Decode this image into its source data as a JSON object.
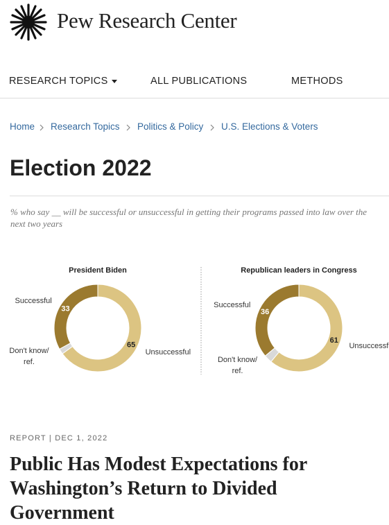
{
  "header": {
    "logo": "Pew Research Center"
  },
  "nav": [
    "RESEARCH TOPICS",
    "ALL PUBLICATIONS",
    "METHODS"
  ],
  "breadcrumb": [
    "Home",
    "Research Topics",
    "Politics & Policy",
    "U.S. Elections & Voters"
  ],
  "page_title": "Election 2022",
  "figure_caption": "% who say __ will be successful or unsuccessful in getting their programs passed into law over the next two years",
  "chart_data": [
    {
      "type": "donut",
      "title": "President Biden",
      "categories": [
        "Unsuccessful",
        "Don't know/ ref.",
        "Successful"
      ],
      "values": [
        65,
        2,
        33
      ],
      "colors": [
        "#dcc482",
        "#d9d9d9",
        "#9b7a2f"
      ]
    },
    {
      "type": "donut",
      "title": "Republican leaders in Congress",
      "categories": [
        "Unsuccessful",
        "Don't know/ ref.",
        "Successful"
      ],
      "values": [
        61,
        3,
        36
      ],
      "colors": [
        "#dcc482",
        "#d9d9d9",
        "#9b7a2f"
      ]
    }
  ],
  "article": {
    "kind": "REPORT",
    "date": "DEC 1, 2022",
    "headline": "Public Has Modest Expectations for Washington’s Return to Divided Government"
  }
}
